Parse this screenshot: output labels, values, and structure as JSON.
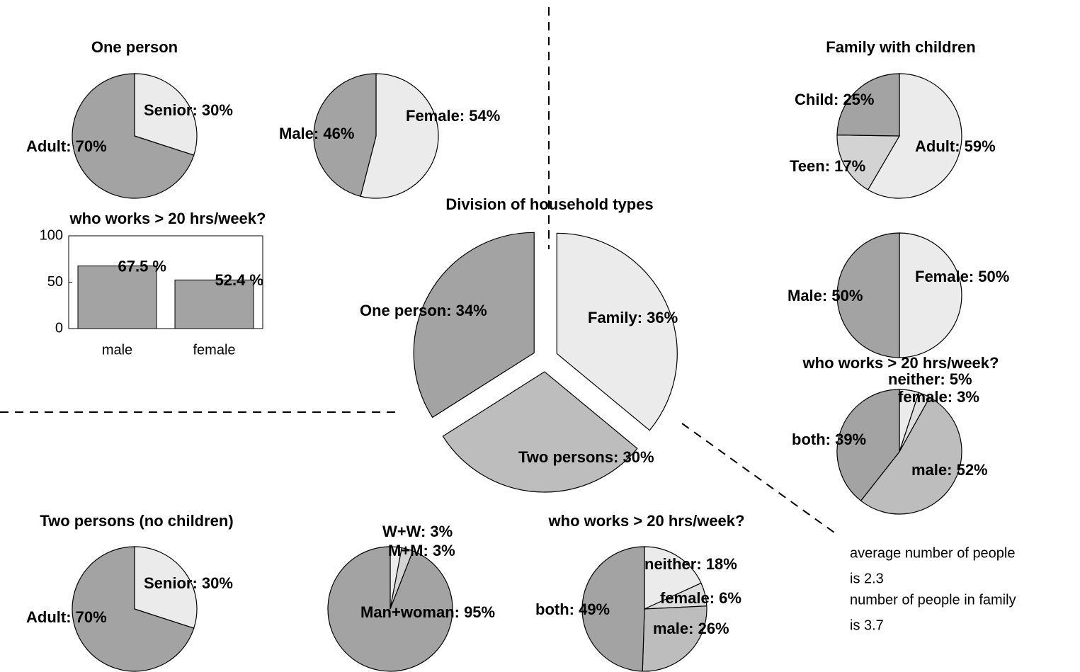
{
  "chart_data": [
    {
      "type": "pie",
      "title": "One person",
      "values": [
        30,
        70
      ],
      "value_labels": [
        "Senior: 30%",
        "Adult: 70%"
      ],
      "colors": [
        "#ebebeb",
        "#a3a3a3"
      ]
    },
    {
      "type": "pie",
      "values": [
        54,
        46
      ],
      "value_labels": [
        "Female: 54%",
        "Male: 46%"
      ],
      "colors": [
        "#ebebeb",
        "#a3a3a3"
      ]
    },
    {
      "type": "bar",
      "title": "who works > 20 hrs/week?",
      "categories": [
        "male",
        "female"
      ],
      "values": [
        67.5,
        52.4
      ],
      "value_labels": [
        "67.5 %",
        "52.4 %"
      ],
      "color": "#a3a3a3",
      "ylim": [
        0,
        100
      ],
      "yticks": [
        0,
        50,
        100
      ]
    },
    {
      "type": "pie",
      "title": "Division of household types",
      "values": [
        36,
        30,
        34
      ],
      "value_labels": [
        "Family: 36%",
        "Two persons: 30%",
        "One person: 34%"
      ],
      "colors": [
        "#ebebeb",
        "#bdbdbd",
        "#a3a3a3"
      ],
      "explode": true
    },
    {
      "type": "pie",
      "title": "Family with children",
      "values": [
        59,
        17,
        25
      ],
      "value_labels": [
        "Adult: 59%",
        "Teen: 17%",
        "Child: 25%"
      ],
      "colors": [
        "#ebebeb",
        "#d3d3d3",
        "#a3a3a3"
      ]
    },
    {
      "type": "pie",
      "values": [
        50,
        50
      ],
      "value_labels": [
        "Female: 50%",
        "Male: 50%"
      ],
      "colors": [
        "#ebebeb",
        "#a3a3a3"
      ]
    },
    {
      "type": "pie",
      "title": "who works > 20 hrs/week?",
      "values": [
        5,
        3,
        52,
        39
      ],
      "value_labels": [
        "neither: 5%",
        "female: 3%",
        "male: 52%",
        "both: 39%"
      ],
      "colors": [
        "#ebebeb",
        "#dedede",
        "#bdbdbd",
        "#a3a3a3"
      ]
    },
    {
      "type": "pie",
      "title": "Two persons (no children)",
      "values": [
        30,
        70
      ],
      "value_labels": [
        "Senior: 30%",
        "Adult: 70%"
      ],
      "colors": [
        "#ebebeb",
        "#a3a3a3"
      ]
    },
    {
      "type": "pie",
      "values": [
        3,
        3,
        95
      ],
      "value_labels": [
        "W+W: 3%",
        "M+M: 3%",
        "Man+woman: 95%"
      ],
      "colors": [
        "#ebebeb",
        "#d3d3d3",
        "#a3a3a3"
      ]
    },
    {
      "type": "pie",
      "title": "who works > 20 hrs/week?",
      "values": [
        18,
        6,
        26,
        49
      ],
      "value_labels": [
        "neither: 18%",
        "female: 6%",
        "male: 26%",
        "both: 49%"
      ],
      "colors": [
        "#ebebeb",
        "#dedede",
        "#bdbdbd",
        "#a3a3a3"
      ]
    }
  ],
  "annotations": [
    "average number of people",
    "is 2.3",
    "number of people in family",
    "is 3.7"
  ]
}
